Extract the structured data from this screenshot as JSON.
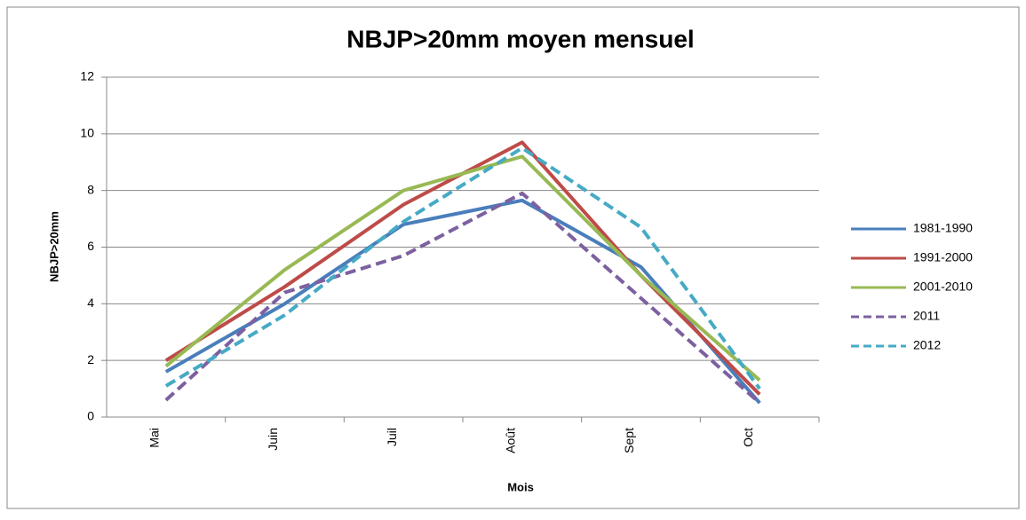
{
  "chart_data": {
    "type": "line",
    "title": "NBJP>20mm moyen mensuel",
    "x_label": "Mois",
    "y_label": "NBJP>20mm",
    "categories": [
      "Mai",
      "Juin",
      "Juil",
      "Août",
      "Sept",
      "Oct"
    ],
    "series": [
      {
        "name": "1981-1990",
        "color": "#4a7ebb",
        "dashed": false,
        "values": [
          1.6,
          4.0,
          6.8,
          7.65,
          5.3,
          0.5
        ]
      },
      {
        "name": "1991-2000",
        "color": "#be4b48",
        "dashed": false,
        "values": [
          2.0,
          4.6,
          7.5,
          9.7,
          5.0,
          0.8
        ]
      },
      {
        "name": "2001-2010",
        "color": "#98b954",
        "dashed": false,
        "values": [
          1.8,
          5.2,
          8.0,
          9.2,
          5.0,
          1.3
        ]
      },
      {
        "name": "2011",
        "color": "#7d60a0",
        "dashed": true,
        "values": [
          0.6,
          4.4,
          5.7,
          7.9,
          4.2,
          0.5
        ]
      },
      {
        "name": "2012",
        "color": "#46aac5",
        "dashed": true,
        "values": [
          1.1,
          3.6,
          6.9,
          9.5,
          6.7,
          1.0
        ]
      }
    ],
    "ylim": [
      0,
      12
    ],
    "yticks": [
      0,
      2,
      4,
      6,
      8,
      10,
      12
    ],
    "grid": true,
    "legend": "right"
  }
}
